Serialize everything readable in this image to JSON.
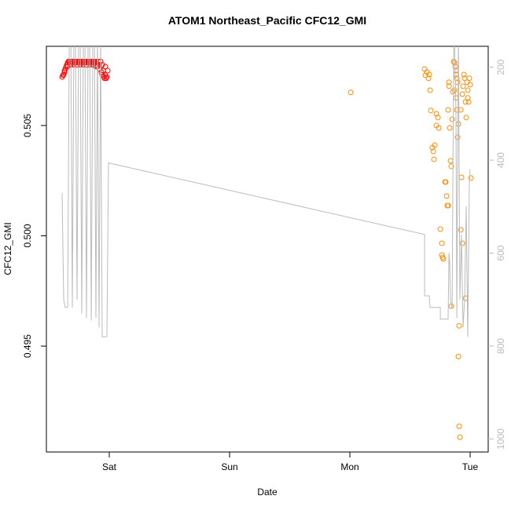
{
  "chart_data": {
    "type": "scatter",
    "title": "ATOM1 Northeast_Pacific CFC12_GMI",
    "xlabel": "Date",
    "ylabel": "CFC12_GMI",
    "xlim": [
      -0.523,
      3.15
    ],
    "xticks": [
      {
        "value": 0,
        "label": "Sat"
      },
      {
        "value": 1,
        "label": "Sun"
      },
      {
        "value": 2,
        "label": "Mon"
      },
      {
        "value": 3,
        "label": "Tue"
      }
    ],
    "ylim": [
      0.4902,
      0.50859
    ],
    "yticks": [
      {
        "value": 0.495,
        "label": "0.495"
      },
      {
        "value": 0.5,
        "label": "0.500"
      },
      {
        "value": 0.505,
        "label": "0.505"
      }
    ],
    "y2lim": [
      1028,
      155
    ],
    "y2ticks": [
      200,
      400,
      600,
      800,
      1000
    ],
    "y2color": "#bbbbbb",
    "series": [
      {
        "color": "#ff0000",
        "mode": "markers",
        "x": [
          -0.392,
          -0.385,
          -0.379,
          -0.372,
          -0.366,
          -0.359,
          -0.352,
          -0.346,
          -0.339,
          -0.333,
          -0.326,
          -0.32,
          -0.313,
          -0.307,
          -0.3,
          -0.294,
          -0.287,
          -0.281,
          -0.274,
          -0.268,
          -0.261,
          -0.255,
          -0.248,
          -0.242,
          -0.235,
          -0.229,
          -0.222,
          -0.216,
          -0.209,
          -0.203,
          -0.196,
          -0.19,
          -0.183,
          -0.176,
          -0.17,
          -0.163,
          -0.157,
          -0.15,
          -0.144,
          -0.137,
          -0.131,
          -0.124,
          -0.118,
          -0.111,
          -0.105,
          -0.098,
          -0.092,
          -0.085,
          -0.079,
          -0.072,
          -0.066,
          -0.059,
          -0.052,
          -0.046,
          -0.039,
          -0.033,
          -0.026,
          -0.02,
          -0.013,
          -0.033,
          -0.059,
          -0.085,
          -0.111,
          -0.137,
          -0.163,
          -0.19,
          -0.216,
          -0.242,
          -0.268,
          -0.294,
          -0.32,
          -0.346,
          -0.372
        ],
        "values": [
          0.5072,
          0.50728,
          0.50731,
          0.50742,
          0.50756,
          0.50767,
          0.50775,
          0.50785,
          0.5079,
          0.5079,
          0.50785,
          0.5079,
          0.5079,
          0.50785,
          0.5079,
          0.5079,
          0.50785,
          0.5079,
          0.5079,
          0.5079,
          0.50785,
          0.5079,
          0.5079,
          0.5079,
          0.50785,
          0.5079,
          0.5079,
          0.5079,
          0.50785,
          0.5079,
          0.5079,
          0.5079,
          0.50785,
          0.5079,
          0.5079,
          0.5079,
          0.50785,
          0.5079,
          0.5079,
          0.5079,
          0.50785,
          0.5079,
          0.50785,
          0.5079,
          0.50775,
          0.50767,
          0.5079,
          0.50775,
          0.50756,
          0.5079,
          0.50742,
          0.50731,
          0.50749,
          0.50721,
          0.50714,
          0.50728,
          0.50714,
          0.5072,
          0.50749,
          0.50767,
          0.50775,
          0.50775,
          0.50767,
          0.50775,
          0.50775,
          0.50775,
          0.50775,
          0.50775,
          0.50775,
          0.50775,
          0.50775,
          0.50767,
          0.50749
        ]
      },
      {
        "color": "#ff8c00",
        "mode": "markers",
        "x": [
          2.007,
          2.621,
          2.627,
          2.641,
          2.654,
          2.66,
          2.667,
          2.673,
          2.686,
          2.693,
          2.699,
          2.706,
          2.719,
          2.732,
          2.719,
          2.739,
          2.752,
          2.765,
          2.771,
          2.778,
          2.765,
          2.791,
          2.797,
          2.804,
          2.81,
          2.817,
          2.817,
          2.824,
          2.824,
          2.83,
          2.837,
          2.843,
          2.843,
          2.85,
          2.856,
          2.863,
          2.869,
          2.876,
          2.882,
          2.882,
          2.889,
          2.895,
          2.869,
          2.882,
          2.889,
          2.895,
          2.902,
          2.908,
          2.902,
          2.908,
          2.915,
          2.922,
          2.928,
          2.935,
          2.941,
          2.948,
          2.954,
          2.961,
          2.967,
          2.974,
          2.98,
          2.98,
          2.987,
          2.993,
          3.0,
          3.007,
          2.961,
          2.935,
          2.922
        ],
        "values": [
          0.5065,
          0.50756,
          0.50728,
          0.50742,
          0.50714,
          0.50731,
          0.5066,
          0.50568,
          0.504,
          0.50383,
          0.50347,
          0.50411,
          0.50553,
          0.50536,
          0.505,
          0.50489,
          0.5003,
          0.49913,
          0.49902,
          0.49895,
          0.49966,
          0.50244,
          0.50244,
          0.5018,
          0.50137,
          0.50137,
          0.50571,
          0.50696,
          0.50678,
          0.50489,
          0.5034,
          0.50315,
          0.49681,
          0.50528,
          0.50653,
          0.5079,
          0.50785,
          0.50767,
          0.50749,
          0.50731,
          0.50714,
          0.50696,
          0.5066,
          0.50625,
          0.50571,
          0.50447,
          0.50507,
          0.49592,
          0.49453,
          0.49137,
          0.49087,
          0.50571,
          0.50265,
          0.50642,
          0.50678,
          0.50731,
          0.50714,
          0.50607,
          0.50536,
          0.50696,
          0.5066,
          0.50625,
          0.50607,
          0.50714,
          0.50685,
          0.50262,
          0.49717,
          0.49966,
          0.50027
        ]
      },
      {
        "color": "#bbbbbb",
        "mode": "line",
        "axis": "y2",
        "x": [
          -0.392,
          -0.379,
          -0.366,
          -0.346,
          -0.333,
          -0.32,
          -0.307,
          -0.294,
          -0.281,
          -0.268,
          -0.255,
          -0.242,
          -0.229,
          -0.216,
          -0.203,
          -0.19,
          -0.176,
          -0.163,
          -0.15,
          -0.137,
          -0.124,
          -0.111,
          -0.098,
          -0.085,
          -0.072,
          -0.059,
          -0.033,
          -0.02,
          -0.007,
          2.621,
          2.621,
          2.66,
          2.667,
          2.752,
          2.752,
          2.817,
          2.824,
          2.83,
          2.837,
          2.85,
          2.863,
          2.869,
          2.882,
          2.889,
          2.902,
          2.915,
          2.928,
          2.941,
          2.954,
          2.967,
          2.98,
          2.993,
          3.0,
          2.007,
          3.0
        ],
        "values": [
          471,
          700,
          717,
          717,
          130,
          130,
          717,
          130,
          130,
          700,
          130,
          130,
          730,
          130,
          130,
          740,
          130,
          130,
          745,
          130,
          130,
          740,
          130,
          760,
          130,
          780,
          780,
          780,
          406,
          560,
          692,
          692,
          717,
          717,
          742,
          742,
          600,
          620,
          700,
          720,
          150,
          130,
          300,
          740,
          130,
          700,
          560,
          760,
          700,
          500,
          780,
          450,
          420,
          null,
          620
        ]
      }
    ]
  }
}
